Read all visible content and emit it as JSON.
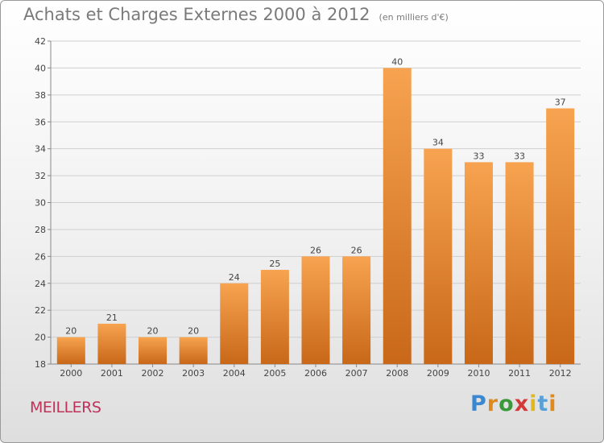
{
  "title": "Achats et Charges Externes 2000 à 2012",
  "unit_note": "(en milliers d'€)",
  "place": "MEILLERS",
  "logo": {
    "text": "Proxiti",
    "letter_colors": [
      "#3a88d0",
      "#e08a1e",
      "#3a9a3a",
      "#d23a3a",
      "#e0b81e",
      "#5aa0d8",
      "#e08a1e"
    ]
  },
  "colors": {
    "bar_light": "#f7a350",
    "bar_dark": "#c86818",
    "grid": "#cfcfcf",
    "axis": "#888888"
  },
  "chart_data": {
    "type": "bar",
    "title": "Achats et Charges Externes 2000 à 2012",
    "xlabel": "",
    "ylabel": "",
    "categories": [
      "2000",
      "2001",
      "2002",
      "2003",
      "2004",
      "2005",
      "2006",
      "2007",
      "2008",
      "2009",
      "2010",
      "2011",
      "2012"
    ],
    "values": [
      20,
      21,
      20,
      20,
      24,
      25,
      26,
      26,
      40,
      34,
      33,
      33,
      37
    ],
    "data_labels": [
      "20",
      "21",
      "20",
      "20",
      "24",
      "25",
      "26",
      "26",
      "40",
      "34",
      "33",
      "33",
      "37"
    ],
    "ylim": [
      18,
      42
    ],
    "yticks": [
      18,
      20,
      22,
      24,
      26,
      28,
      30,
      32,
      34,
      36,
      38,
      40,
      42
    ],
    "grid": true
  }
}
